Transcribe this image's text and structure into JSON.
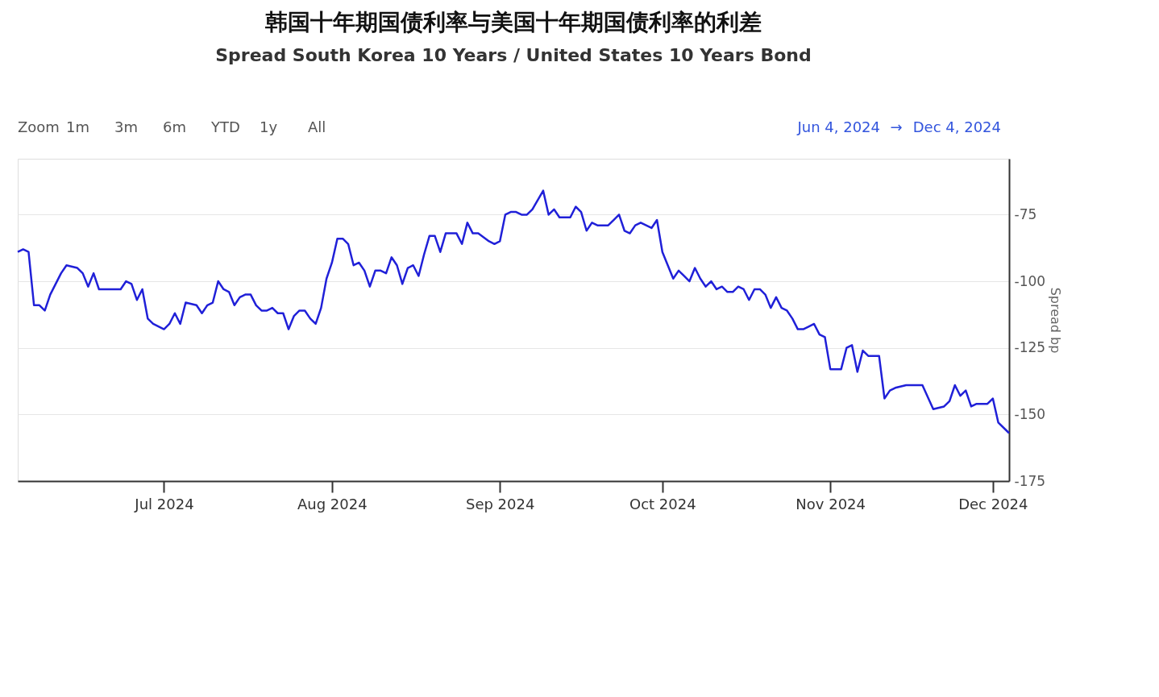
{
  "chart_data": {
    "type": "line",
    "title": "韩国十年期国债利率与美国十年期国债利率的利差",
    "subtitle": "Spread South Korea 10 Years / United States 10 Years Bond",
    "ylabel": "Spread bp",
    "annotations": [
      "Zoom",
      "1m",
      "3m",
      "6m",
      "YTD",
      "1y",
      "All",
      "Jun 4, 2024",
      "→",
      "Dec 4, 2024"
    ],
    "x": [
      "2024-06-04",
      "2024-06-05",
      "2024-06-06",
      "2024-06-07",
      "2024-06-08",
      "2024-06-09",
      "2024-06-10",
      "2024-06-12",
      "2024-06-13",
      "2024-06-15",
      "2024-06-16",
      "2024-06-17",
      "2024-06-18",
      "2024-06-19",
      "2024-06-20",
      "2024-06-21",
      "2024-06-23",
      "2024-06-24",
      "2024-06-25",
      "2024-06-26",
      "2024-06-27",
      "2024-06-28",
      "2024-06-29",
      "2024-07-01",
      "2024-07-02",
      "2024-07-03",
      "2024-07-04",
      "2024-07-05",
      "2024-07-07",
      "2024-07-08",
      "2024-07-09",
      "2024-07-10",
      "2024-07-11",
      "2024-07-12",
      "2024-07-13",
      "2024-07-14",
      "2024-07-15",
      "2024-07-16",
      "2024-07-17",
      "2024-07-18",
      "2024-07-19",
      "2024-07-20",
      "2024-07-21",
      "2024-07-22",
      "2024-07-23",
      "2024-07-24",
      "2024-07-25",
      "2024-07-26",
      "2024-07-27",
      "2024-07-28",
      "2024-07-29",
      "2024-07-30",
      "2024-07-31",
      "2024-08-01",
      "2024-08-02",
      "2024-08-03",
      "2024-08-04",
      "2024-08-05",
      "2024-08-06",
      "2024-08-07",
      "2024-08-08",
      "2024-08-09",
      "2024-08-10",
      "2024-08-11",
      "2024-08-12",
      "2024-08-13",
      "2024-08-14",
      "2024-08-15",
      "2024-08-16",
      "2024-08-17",
      "2024-08-18",
      "2024-08-19",
      "2024-08-20",
      "2024-08-21",
      "2024-08-22",
      "2024-08-23",
      "2024-08-24",
      "2024-08-25",
      "2024-08-26",
      "2024-08-27",
      "2024-08-28",
      "2024-08-30",
      "2024-08-31",
      "2024-09-01",
      "2024-09-02",
      "2024-09-03",
      "2024-09-04",
      "2024-09-05",
      "2024-09-06",
      "2024-09-07",
      "2024-09-09",
      "2024-09-10",
      "2024-09-11",
      "2024-09-12",
      "2024-09-14",
      "2024-09-15",
      "2024-09-16",
      "2024-09-17",
      "2024-09-18",
      "2024-09-19",
      "2024-09-21",
      "2024-09-22",
      "2024-09-23",
      "2024-09-24",
      "2024-09-25",
      "2024-09-26",
      "2024-09-27",
      "2024-09-28",
      "2024-09-29",
      "2024-09-30",
      "2024-10-01",
      "2024-10-03",
      "2024-10-04",
      "2024-10-05",
      "2024-10-06",
      "2024-10-07",
      "2024-10-08",
      "2024-10-09",
      "2024-10-10",
      "2024-10-11",
      "2024-10-12",
      "2024-10-13",
      "2024-10-14",
      "2024-10-15",
      "2024-10-16",
      "2024-10-17",
      "2024-10-18",
      "2024-10-19",
      "2024-10-20",
      "2024-10-21",
      "2024-10-22",
      "2024-10-23",
      "2024-10-24",
      "2024-10-25",
      "2024-10-26",
      "2024-10-27",
      "2024-10-28",
      "2024-10-29",
      "2024-10-30",
      "2024-10-31",
      "2024-11-01",
      "2024-11-02",
      "2024-11-03",
      "2024-11-04",
      "2024-11-05",
      "2024-11-06",
      "2024-11-07",
      "2024-11-08",
      "2024-11-09",
      "2024-11-10",
      "2024-11-11",
      "2024-11-12",
      "2024-11-13",
      "2024-11-15",
      "2024-11-16",
      "2024-11-18",
      "2024-11-20",
      "2024-11-22",
      "2024-11-23",
      "2024-11-24",
      "2024-11-25",
      "2024-11-26",
      "2024-11-27",
      "2024-11-28",
      "2024-11-30",
      "2024-12-01",
      "2024-12-02",
      "2024-12-04"
    ],
    "series": [
      {
        "color": "#2020d8",
        "values": [
          -89,
          -88,
          -89,
          -109,
          -109,
          -111,
          -105,
          -97,
          -94,
          -95,
          -97,
          -102,
          -97,
          -103,
          -103,
          -103,
          -103,
          -100,
          -101,
          -107,
          -103,
          -114,
          -116,
          -118,
          -116,
          -112,
          -116,
          -108,
          -109,
          -112,
          -109,
          -108,
          -100,
          -103,
          -104,
          -109,
          -106,
          -105,
          -105,
          -109,
          -111,
          -111,
          -110,
          -112,
          -112,
          -118,
          -113,
          -111,
          -111,
          -114,
          -116,
          -110,
          -99,
          -93,
          -84,
          -84,
          -86,
          -94,
          -93,
          -96,
          -102,
          -96,
          -96,
          -97,
          -91,
          -94,
          -101,
          -95,
          -94,
          -98,
          -90,
          -83,
          -83,
          -89,
          -82,
          -82,
          -82,
          -86,
          -78,
          -82,
          -82,
          -85,
          -86,
          -85,
          -75,
          -74,
          -74,
          -75,
          -75,
          -73,
          -66,
          -75,
          -73,
          -76,
          -76,
          -72,
          -74,
          -81,
          -78,
          -79,
          -79,
          -77,
          -75,
          -81,
          -82,
          -79,
          -78,
          -79,
          -80,
          -77,
          -89,
          -99,
          -96,
          -98,
          -100,
          -95,
          -99,
          -102,
          -100,
          -103,
          -102,
          -104,
          -104,
          -102,
          -103,
          -107,
          -103,
          -103,
          -105,
          -110,
          -106,
          -110,
          -111,
          -114,
          -118,
          -118,
          -117,
          -116,
          -120,
          -121,
          -133,
          -133,
          -133,
          -125,
          -124,
          -134,
          -126,
          -128,
          -128,
          -128,
          -144,
          -141,
          -140,
          -139,
          -139,
          -139,
          -148,
          -147,
          -145,
          -139,
          -143,
          -141,
          -147,
          -146,
          -146,
          -144,
          -153,
          -157
        ]
      }
    ],
    "xlim": [
      "2024-06-04",
      "2024-12-04"
    ],
    "xticks": [
      {
        "value": "2024-07-01",
        "label": "Jul 2024"
      },
      {
        "value": "2024-08-01",
        "label": "Aug 2024"
      },
      {
        "value": "2024-09-01",
        "label": "Sep 2024"
      },
      {
        "value": "2024-10-01",
        "label": "Oct 2024"
      },
      {
        "value": "2024-11-01",
        "label": "Nov 2024"
      },
      {
        "value": "2024-12-01",
        "label": "Dec 2024"
      }
    ],
    "ylim": [
      -175,
      -54
    ],
    "yticks": [
      -175,
      -150,
      -125,
      -100,
      -75
    ],
    "grid": "y",
    "legend": false,
    "marker": "none",
    "line_style": "solid"
  }
}
